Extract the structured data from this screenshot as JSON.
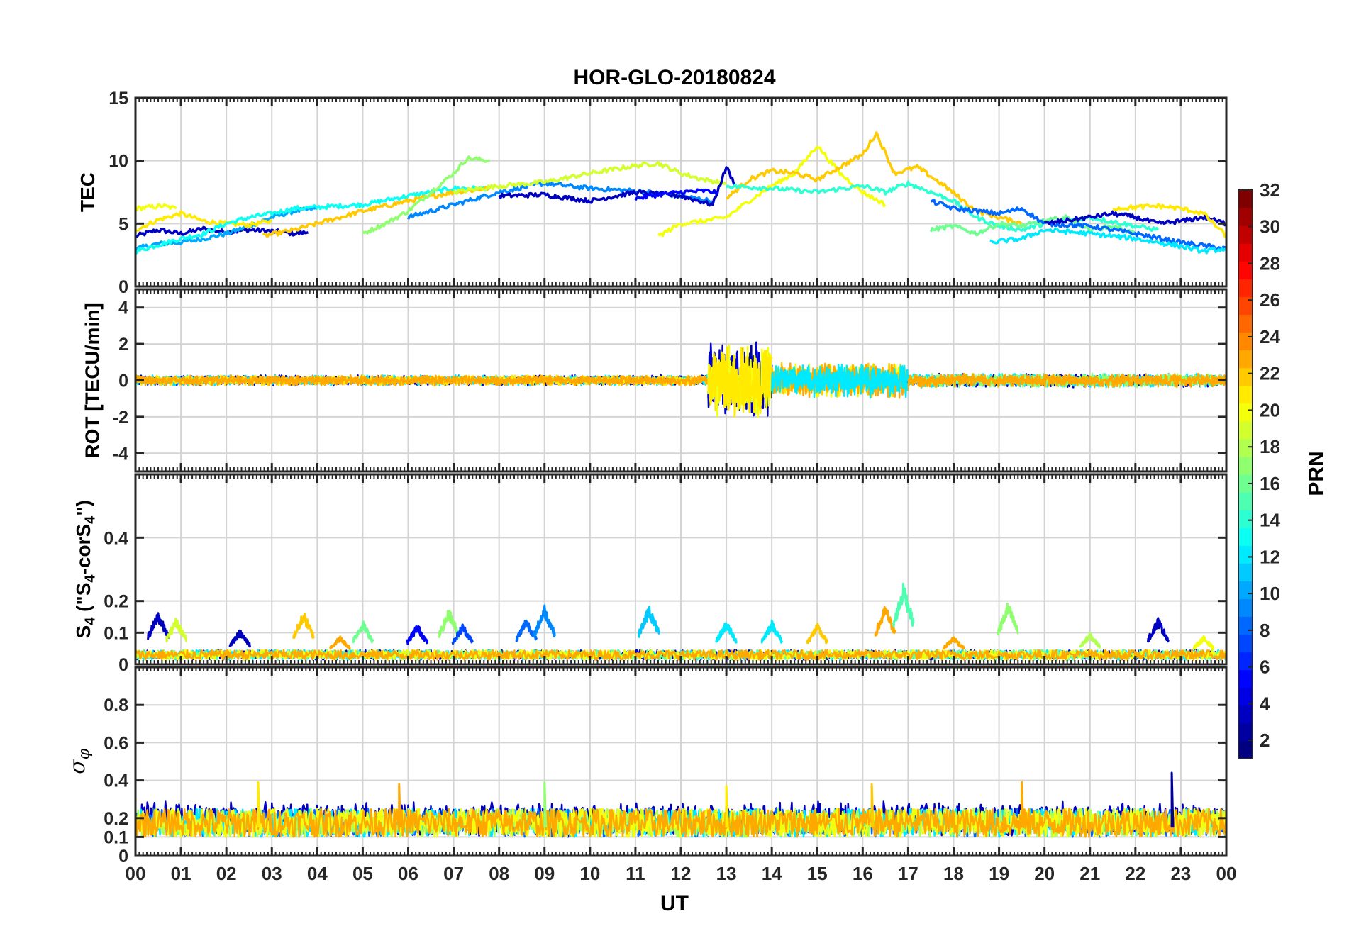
{
  "chart_data": {
    "type": "line",
    "title": "HOR-GLO-20180824",
    "xlabel": "UT",
    "x_ticks": [
      "00",
      "01",
      "02",
      "03",
      "04",
      "05",
      "06",
      "07",
      "08",
      "09",
      "10",
      "11",
      "12",
      "13",
      "14",
      "15",
      "16",
      "17",
      "18",
      "19",
      "20",
      "21",
      "22",
      "23",
      "00"
    ],
    "xlim": [
      0,
      24
    ],
    "grid": true,
    "colorbar": {
      "label": "PRN",
      "range": [
        1,
        32
      ],
      "ticks": [
        "2",
        "4",
        "6",
        "8",
        "10",
        "12",
        "14",
        "16",
        "18",
        "20",
        "22",
        "24",
        "26",
        "28",
        "30",
        "32"
      ],
      "colormap": "jet"
    },
    "panels": [
      {
        "ylabel": "TEC",
        "ylim": [
          0,
          15
        ],
        "yticks": [
          "0",
          "5",
          "10",
          "15"
        ],
        "series": [
          {
            "prn": 3,
            "x": [
              0,
              0.5,
              1,
              1.5,
              2,
              2.5,
              3,
              3.5,
              3.8
            ],
            "y": [
              4,
              4.5,
              4.2,
              4.6,
              4.3,
              4.5,
              4.4,
              4.2,
              4.3
            ]
          },
          {
            "prn": 10,
            "x": [
              0,
              0.5,
              1,
              1.5,
              2,
              2.5,
              3,
              3.5,
              4
            ],
            "y": [
              3,
              3.4,
              3.5,
              3.8,
              4.2,
              4.8,
              5.5,
              6,
              6.2
            ]
          },
          {
            "prn": 20,
            "x": [
              0,
              0.3,
              0.6,
              0.9
            ],
            "y": [
              6.2,
              6.3,
              6.4,
              6.2
            ]
          },
          {
            "prn": 21,
            "x": [
              0,
              0.5,
              1,
              1.5,
              2,
              2.5,
              3
            ],
            "y": [
              4.5,
              5.3,
              5.8,
              5.2,
              5,
              4.9,
              5.2
            ]
          },
          {
            "prn": 13,
            "x": [
              0,
              0.5,
              1,
              1.5,
              2,
              2.5,
              3,
              3.5,
              4,
              5,
              6,
              7,
              7.8
            ],
            "y": [
              2.8,
              3.3,
              3.8,
              4.2,
              5,
              5.5,
              5.8,
              6.2,
              6.3,
              6.5,
              7.2,
              7.8,
              7.8
            ]
          },
          {
            "prn": 22,
            "x": [
              2.8,
              3.5,
              4,
              5,
              6,
              7,
              7.8
            ],
            "y": [
              4,
              4.5,
              5,
              6,
              6.8,
              7.5,
              7.8
            ]
          },
          {
            "prn": 17,
            "x": [
              5,
              5.5,
              6,
              6.5,
              7,
              7.3,
              7.8
            ],
            "y": [
              4.2,
              5,
              6,
              7.5,
              9,
              10.2,
              10
            ]
          },
          {
            "prn": 9,
            "x": [
              6,
              7,
              8,
              9,
              10,
              11,
              12,
              12.7
            ],
            "y": [
              5.5,
              6.5,
              7.5,
              8.2,
              7.8,
              7.6,
              7.2,
              6.8
            ]
          },
          {
            "prn": 19,
            "x": [
              7,
              8,
              9,
              10,
              11,
              11.5,
              12,
              12.5,
              13
            ],
            "y": [
              7.5,
              8,
              8.3,
              9,
              9.6,
              9.8,
              9,
              8.5,
              8.2
            ]
          },
          {
            "prn": 3,
            "x": [
              8,
              9,
              10,
              11,
              12,
              12.7,
              13,
              13.2
            ],
            "y": [
              7.2,
              7.3,
              6.8,
              7.5,
              7.2,
              6.5,
              9.5,
              8
            ]
          },
          {
            "prn": 5,
            "x": [
              11,
              11.5,
              12,
              12.5,
              12.8
            ],
            "y": [
              7,
              7.3,
              7.5,
              7.6,
              7.5
            ]
          },
          {
            "prn": 20,
            "x": [
              11.5,
              12,
              12.5,
              13,
              13.5,
              14,
              14.5,
              15,
              15.5,
              16,
              16.5
            ],
            "y": [
              4,
              5,
              5.2,
              5.5,
              6.8,
              8,
              9,
              11.2,
              9,
              7.5,
              6.5
            ]
          },
          {
            "prn": 22,
            "x": [
              13,
              13.5,
              14,
              14.5,
              15,
              15.5,
              16,
              16.3,
              16.7,
              17.2,
              17.8,
              18.5,
              19,
              19.5
            ],
            "y": [
              7,
              8.5,
              9.2,
              9,
              8.5,
              9.5,
              10.5,
              12.2,
              9,
              9.5,
              8,
              6,
              5.5,
              5
            ]
          },
          {
            "prn": 14,
            "x": [
              13,
              14,
              15,
              16,
              16.5,
              17,
              17.5,
              18,
              18.5,
              19,
              19.5,
              20,
              21,
              22,
              22.5
            ],
            "y": [
              8,
              7.8,
              7.5,
              8,
              7.5,
              8.2,
              7.5,
              6.8,
              5.5,
              4.8,
              4.5,
              5,
              5.5,
              4.8,
              4.5
            ]
          },
          {
            "prn": 16,
            "x": [
              17.5,
              18,
              18.5,
              19,
              19.5,
              20,
              20.5,
              21,
              21.5,
              22
            ],
            "y": [
              4.5,
              4.8,
              4.2,
              5,
              4.8,
              5.2,
              5.5,
              4.5,
              4.8,
              4.2
            ]
          },
          {
            "prn": 8,
            "x": [
              17.5,
              18,
              18.5,
              19,
              19.5,
              20,
              21,
              22,
              23,
              24
            ],
            "y": [
              6.8,
              6.2,
              6,
              5.8,
              6.2,
              5,
              4.8,
              4.2,
              3.5,
              3
            ]
          },
          {
            "prn": 3,
            "x": [
              20,
              21,
              21.5,
              22,
              22.5,
              23,
              23.5,
              24
            ],
            "y": [
              5,
              5.5,
              5.8,
              5.5,
              5,
              5.2,
              5.5,
              5
            ]
          },
          {
            "prn": 21,
            "x": [
              21.5,
              22,
              22.5,
              23,
              23.5,
              24
            ],
            "y": [
              6.2,
              6.3,
              6.4,
              6.2,
              5.8,
              4
            ]
          },
          {
            "prn": 12,
            "x": [
              18.8,
              19.5,
              20,
              21,
              22,
              22.5,
              23,
              23.5,
              24
            ],
            "y": [
              3.5,
              3.8,
              4.5,
              4.2,
              3.8,
              3.5,
              3.2,
              2.8,
              3
            ]
          }
        ]
      },
      {
        "ylabel": "ROT [TECU/min]",
        "ylim": [
          -5,
          5
        ],
        "yticks": [
          "-4",
          "-2",
          "0",
          "2",
          "4"
        ],
        "baseline": 0,
        "activity": [
          {
            "start": 0,
            "end": 12.6,
            "amplitude": 0.3,
            "prns": [
              3,
              12,
              21,
              23
            ]
          },
          {
            "start": 12.6,
            "end": 14,
            "amplitude": 2.2,
            "prns": [
              2,
              4,
              20,
              21
            ]
          },
          {
            "start": 14,
            "end": 17,
            "amplitude": 1.0,
            "prns": [
              20,
              22,
              23,
              12
            ]
          },
          {
            "start": 17,
            "end": 24,
            "amplitude": 0.4,
            "prns": [
              3,
              12,
              17,
              23
            ]
          }
        ]
      },
      {
        "ylabel": "S4 (\"S4-corS4\")",
        "ylim": [
          0,
          0.6
        ],
        "yticks": [
          "0",
          "0.1",
          "0.2",
          "0.4"
        ],
        "peaks": [
          {
            "x": 0.5,
            "y": 0.17,
            "prn": 3
          },
          {
            "x": 0.9,
            "y": 0.15,
            "prn": 19
          },
          {
            "x": 2.3,
            "y": 0.11,
            "prn": 3
          },
          {
            "x": 3.7,
            "y": 0.17,
            "prn": 22
          },
          {
            "x": 4.5,
            "y": 0.09,
            "prn": 23
          },
          {
            "x": 5,
            "y": 0.14,
            "prn": 16
          },
          {
            "x": 6.2,
            "y": 0.13,
            "prn": 5
          },
          {
            "x": 6.9,
            "y": 0.18,
            "prn": 17
          },
          {
            "x": 7.2,
            "y": 0.13,
            "prn": 7
          },
          {
            "x": 8.6,
            "y": 0.15,
            "prn": 8
          },
          {
            "x": 9,
            "y": 0.19,
            "prn": 9
          },
          {
            "x": 11.3,
            "y": 0.19,
            "prn": 11
          },
          {
            "x": 13,
            "y": 0.14,
            "prn": 12
          },
          {
            "x": 14,
            "y": 0.14,
            "prn": 12
          },
          {
            "x": 15,
            "y": 0.13,
            "prn": 22
          },
          {
            "x": 16.5,
            "y": 0.19,
            "prn": 23
          },
          {
            "x": 16.9,
            "y": 0.26,
            "prn": 15
          },
          {
            "x": 18,
            "y": 0.09,
            "prn": 23
          },
          {
            "x": 19.2,
            "y": 0.2,
            "prn": 17
          },
          {
            "x": 21,
            "y": 0.1,
            "prn": 18
          },
          {
            "x": 22.5,
            "y": 0.15,
            "prn": 3
          },
          {
            "x": 23.5,
            "y": 0.09,
            "prn": 20
          }
        ]
      },
      {
        "ylabel": "σ φ",
        "ylim": [
          0,
          1
        ],
        "yticks": [
          "0",
          "0.1",
          "0.2",
          "0.4",
          "0.6",
          "0.8"
        ],
        "baseline_band": [
          0.1,
          0.25
        ],
        "peaks": [
          {
            "x": 2.7,
            "y": 0.39,
            "prn": 21
          },
          {
            "x": 5.8,
            "y": 0.38,
            "prn": 23
          },
          {
            "x": 9,
            "y": 0.39,
            "prn": 17
          },
          {
            "x": 13,
            "y": 0.37,
            "prn": 21
          },
          {
            "x": 16.2,
            "y": 0.38,
            "prn": 22
          },
          {
            "x": 19.5,
            "y": 0.39,
            "prn": 23
          },
          {
            "x": 22.8,
            "y": 0.44,
            "prn": 2
          }
        ]
      }
    ]
  }
}
